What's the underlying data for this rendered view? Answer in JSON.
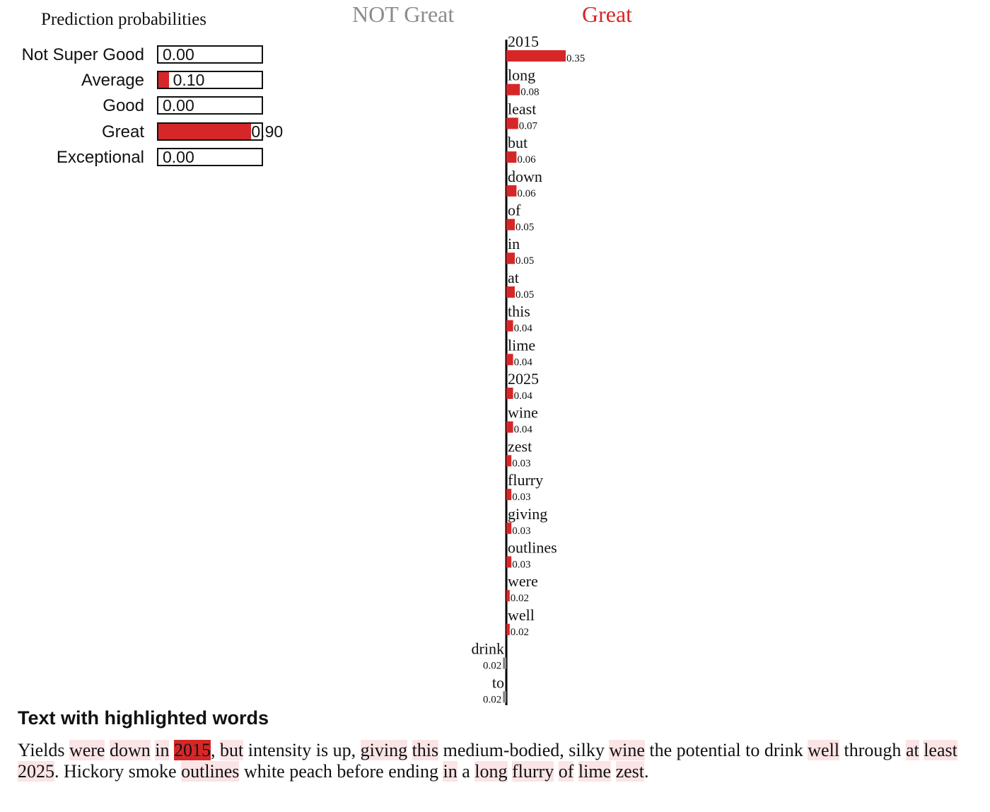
{
  "prediction_probabilities": {
    "title": "Prediction probabilities",
    "classes": [
      {
        "label": "Not Super Good",
        "value": 0.0,
        "display": "0.00"
      },
      {
        "label": "Average",
        "value": 0.1,
        "display": "0.10"
      },
      {
        "label": "Good",
        "value": 0.0,
        "display": "0.00"
      },
      {
        "label": "Great",
        "value": 0.9,
        "display": "0.90"
      },
      {
        "label": "Exceptional",
        "value": 0.0,
        "display": "0.00"
      }
    ]
  },
  "explanation": {
    "negative_label": "NOT Great",
    "positive_label": "Great",
    "colors": {
      "positive": "#d62728",
      "negative": "#8c8c8c",
      "bar_text": "#111111"
    }
  },
  "chart_data": {
    "type": "bar",
    "orientation": "horizontal",
    "categories": [
      "2015",
      "long",
      "least",
      "but",
      "down",
      "of",
      "in",
      "at",
      "this",
      "lime",
      "2025",
      "wine",
      "zest",
      "flurry",
      "giving",
      "outlines",
      "were",
      "well",
      "drink",
      "to"
    ],
    "values": [
      0.35,
      0.08,
      0.07,
      0.06,
      0.06,
      0.05,
      0.05,
      0.05,
      0.04,
      0.04,
      0.04,
      0.04,
      0.03,
      0.03,
      0.03,
      0.03,
      0.02,
      0.02,
      -0.02,
      -0.02
    ],
    "labels": [
      "0.35",
      "0.08",
      "0.07",
      "0.06",
      "0.06",
      "0.05",
      "0.05",
      "0.05",
      "0.04",
      "0.04",
      "0.04",
      "0.04",
      "0.03",
      "0.03",
      "0.03",
      "0.03",
      "0.02",
      "0.02",
      "0.02",
      "0.02"
    ],
    "title": "",
    "xlabel": "",
    "ylabel": ""
  },
  "highlighted_text": {
    "heading": "Text with highlighted words",
    "tokens": [
      {
        "t": "Yields",
        "h": 0
      },
      {
        "t": " ",
        "h": 0
      },
      {
        "t": "were",
        "h": 1
      },
      {
        "t": " ",
        "h": 0
      },
      {
        "t": "down",
        "h": 1
      },
      {
        "t": " ",
        "h": 0
      },
      {
        "t": "in",
        "h": 1
      },
      {
        "t": " ",
        "h": 0
      },
      {
        "t": "2015",
        "h": 2
      },
      {
        "t": ", ",
        "h": 0
      },
      {
        "t": "but",
        "h": 1
      },
      {
        "t": " intensity is up, ",
        "h": 0
      },
      {
        "t": "giving",
        "h": 1
      },
      {
        "t": " ",
        "h": 0
      },
      {
        "t": "this",
        "h": 1
      },
      {
        "t": " medium-bodied, silky ",
        "h": 0
      },
      {
        "t": "wine",
        "h": 1
      },
      {
        "t": " the potential ",
        "h": 0
      },
      {
        "t": "to",
        "h": 0
      },
      {
        "t": " ",
        "h": 0
      },
      {
        "t": "drink",
        "h": 0
      },
      {
        "t": " ",
        "h": 0
      },
      {
        "t": "well",
        "h": 1
      },
      {
        "t": " through ",
        "h": 0
      },
      {
        "t": "at",
        "h": 1
      },
      {
        "t": " ",
        "h": 0
      },
      {
        "t": "least",
        "h": 1
      },
      {
        "t": " ",
        "h": 0
      },
      {
        "t": "2025",
        "h": 1
      },
      {
        "t": ". Hickory smoke ",
        "h": 0
      },
      {
        "t": "outlines",
        "h": 1
      },
      {
        "t": " white peach before ending ",
        "h": 0
      },
      {
        "t": "in",
        "h": 1
      },
      {
        "t": " a ",
        "h": 0
      },
      {
        "t": "long",
        "h": 1
      },
      {
        "t": " ",
        "h": 0
      },
      {
        "t": "flurry",
        "h": 1
      },
      {
        "t": " ",
        "h": 0
      },
      {
        "t": "of",
        "h": 1
      },
      {
        "t": " ",
        "h": 0
      },
      {
        "t": "lime",
        "h": 1
      },
      {
        "t": " ",
        "h": 0
      },
      {
        "t": "zest",
        "h": 1
      },
      {
        "t": ".",
        "h": 0
      }
    ]
  }
}
